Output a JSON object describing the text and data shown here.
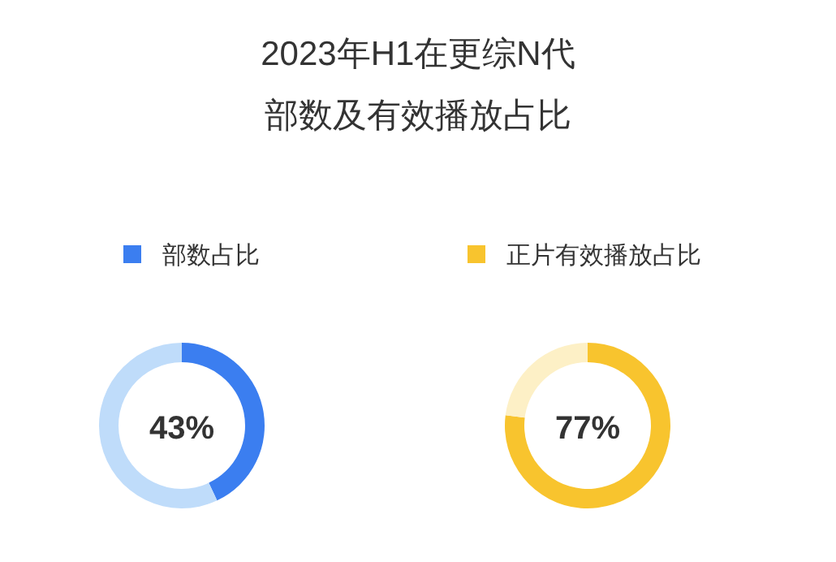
{
  "chart_data": [
    {
      "type": "donut",
      "title": "2023年H1在更综N代",
      "subtitle": "部数及有效播放占比",
      "categories": [
        "部数占比",
        null
      ],
      "values": [
        43,
        57
      ],
      "colors": [
        "#3b7ef0",
        "#bfdcfa"
      ],
      "annotations": [
        "43%"
      ],
      "legend": "top"
    },
    {
      "type": "donut",
      "categories": [
        "正片有效播放占比",
        null
      ],
      "values": [
        77,
        23
      ],
      "colors": [
        "#f8c42e",
        "#fdf0c6"
      ],
      "annotations": [
        "77%"
      ],
      "legend": "top"
    }
  ]
}
